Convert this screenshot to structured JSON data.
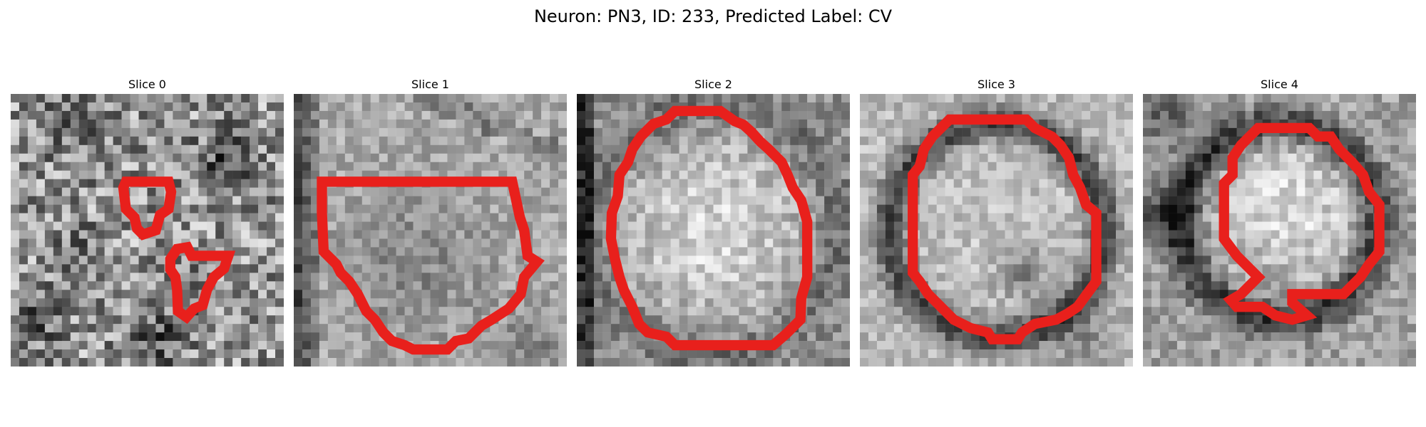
{
  "figure": {
    "title": "Neuron: PN3, ID: 233, Predicted Label: CV"
  },
  "panels": [
    {
      "title": "Slice 0"
    },
    {
      "title": "Slice 1"
    },
    {
      "title": "Slice 2"
    },
    {
      "title": "Slice 3"
    },
    {
      "title": "Slice 4"
    }
  ],
  "image": {
    "colormap": "grayscale",
    "contour_color": "#e8201c"
  }
}
